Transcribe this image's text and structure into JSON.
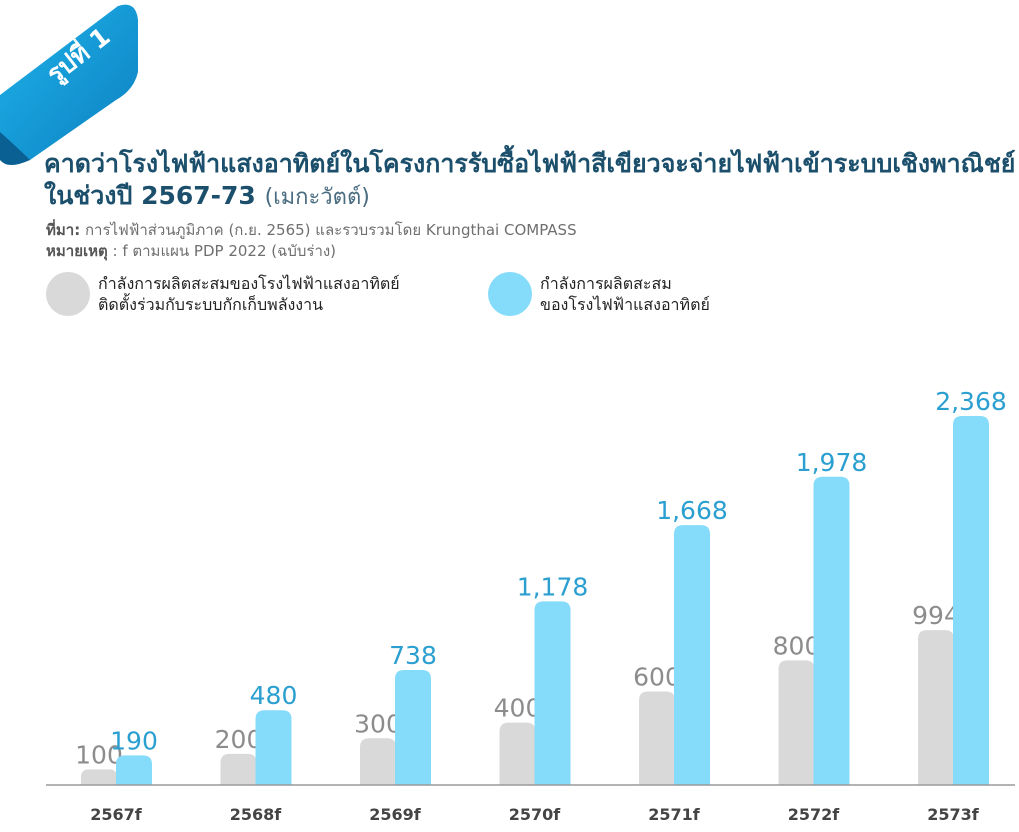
{
  "figure_label": "รูปที่ 1",
  "title": {
    "line1": "คาดว่าโรงไฟฟ้าแสงอาทิตย์ในโครงการรับซื้อไฟฟ้าสีเขียวจะจ่ายไฟฟ้าเข้าระบบเชิงพาณิชย์",
    "line2": "ในช่วงปี 2567-73",
    "unit": "(เมกะวัตต์)"
  },
  "source": {
    "label": "ที่มา:",
    "text": " การไฟฟ้าส่วนภูมิภาค (ก.ย. 2565) และรวบรวมโดย Krungthai COMPASS"
  },
  "note": {
    "label": "หมายเหตุ",
    "text": " : f ตามแผน PDP 2022 (ฉบับร่าง)"
  },
  "legend": [
    {
      "line1": "กำลังการผลิตสะสมของโรงไฟฟ้าแสงอาทิตย์",
      "line2": "ติดตั้งร่วมกับระบบกักเก็บพลังงาน",
      "color": "#d9d9d9"
    },
    {
      "line1": "กำลังการผลิตสะสม",
      "line2": "ของโรงไฟฟ้าแสงอาทิตย์",
      "color": "#85dbfa"
    }
  ],
  "colors": {
    "ribbon": "#1a9bd7",
    "title": "#1b4f6b",
    "gray_label": "#8c8c8c",
    "blue_label": "#2b9fd0"
  },
  "chart_data": {
    "type": "bar",
    "categories": [
      "2567f",
      "2568f",
      "2569f",
      "2570f",
      "2571f",
      "2572f",
      "2573f"
    ],
    "series": [
      {
        "name": "กำลังการผลิตสะสมของโรงไฟฟ้าแสงอาทิตย์ติดตั้งร่วมกับระบบกักเก็บพลังงาน",
        "values": [
          100,
          200,
          300,
          400,
          600,
          800,
          994
        ],
        "labels": [
          "100",
          "200",
          "300",
          "400",
          "600",
          "800",
          "994"
        ],
        "color": "#d9d9d9"
      },
      {
        "name": "กำลังการผลิตสะสมของโรงไฟฟ้าแสงอาทิตย์",
        "values": [
          190,
          480,
          738,
          1178,
          1668,
          1978,
          2368
        ],
        "labels": [
          "190",
          "480",
          "738",
          "1,178",
          "1,668",
          "1,978",
          "2,368"
        ],
        "color": "#85dbfa"
      }
    ],
    "ylim": [
      0,
      2368
    ],
    "grid": false,
    "legend_position": "top-left"
  }
}
